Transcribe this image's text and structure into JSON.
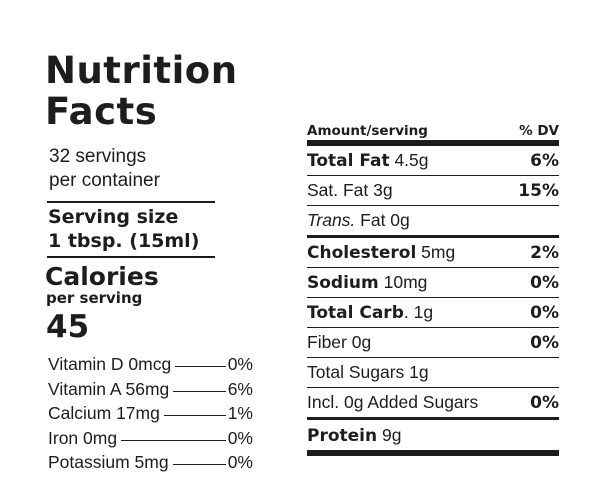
{
  "title": {
    "line1": "Nutrition",
    "line2": "Facts"
  },
  "servings": {
    "line1": "32 servings",
    "line2": "per container"
  },
  "serving_size": {
    "label": "Serving size",
    "value": "1 tbsp. (15ml)"
  },
  "calories": {
    "label": "Calories",
    "sub": "per serving",
    "value": "45"
  },
  "vitamins": [
    {
      "name": "Vitamin D 0mcg",
      "dv": "0%"
    },
    {
      "name": "Vitamin A 56mg",
      "dv": "6%"
    },
    {
      "name": "Calcium 17mg",
      "dv": "1%"
    },
    {
      "name": "Iron 0mg",
      "dv": "0%"
    },
    {
      "name": "Potassium 5mg",
      "dv": "0%"
    }
  ],
  "table": {
    "header_amount": "Amount/serving",
    "header_dv": "% DV",
    "rows": [
      {
        "bold": "Total Fat",
        "rest": " 4.5g",
        "dv": "6%"
      },
      {
        "bold": "",
        "rest": "Sat. Fat 3g",
        "dv": "15%"
      },
      {
        "bold": "",
        "italic": "Trans.",
        "rest": " Fat 0g",
        "dv": ""
      },
      {
        "bold": "Cholesterol",
        "rest": " 5mg",
        "dv": "2%"
      },
      {
        "bold": "Sodium",
        "rest": " 10mg",
        "dv": "0%"
      },
      {
        "bold": "Total Carb",
        "rest": ". 1g",
        "dv": "0%"
      },
      {
        "bold": "",
        "rest": "Fiber 0g",
        "dv": "0%"
      },
      {
        "bold": "",
        "rest": "Total Sugars 1g",
        "dv": ""
      },
      {
        "bold": "",
        "rest": "Incl. 0g Added Sugars",
        "dv": "0%"
      },
      {
        "bold": "Protein",
        "rest": " 9g",
        "dv": ""
      }
    ]
  }
}
